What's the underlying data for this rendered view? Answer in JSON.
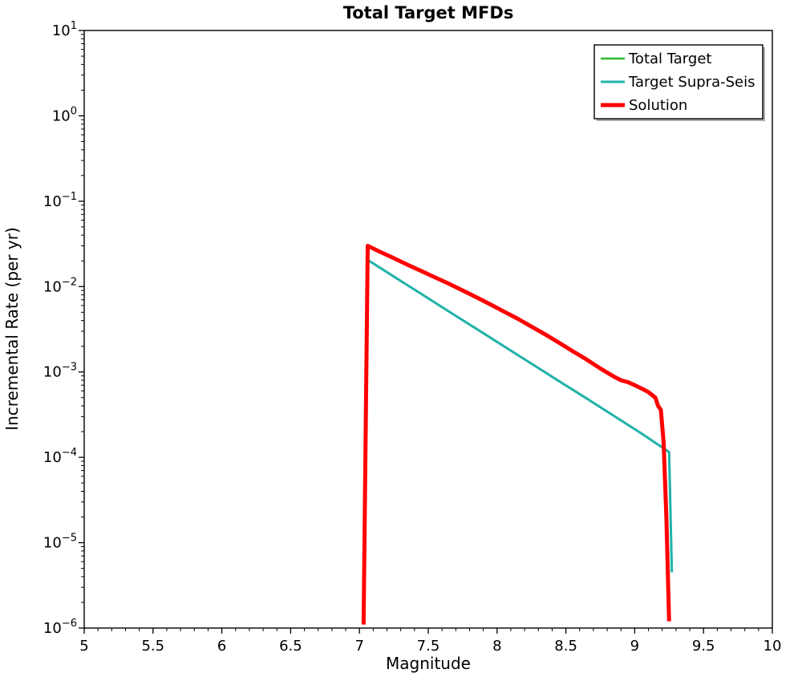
{
  "chart_data": {
    "type": "line",
    "title": "Total Target MFDs",
    "xlabel": "Magnitude",
    "ylabel": "Incremental Rate (per yr)",
    "xlim": [
      5,
      10
    ],
    "ylim_log10": [
      -6,
      1
    ],
    "xticks": [
      5,
      5.5,
      6,
      6.5,
      7,
      7.5,
      8,
      8.5,
      9,
      9.5,
      10
    ],
    "ytick_exponents": [
      1,
      0,
      -1,
      -2,
      -3,
      -4,
      -5,
      -6
    ],
    "grid": false,
    "legend_position": "upper right",
    "series": [
      {
        "name": "Total Target",
        "color": "#2eb82e",
        "width": 2.5,
        "points": [
          [
            7.05,
            0.021
          ],
          [
            7.25,
            0.0131
          ],
          [
            7.45,
            0.0082
          ],
          [
            7.65,
            0.0051
          ],
          [
            7.85,
            0.0032
          ],
          [
            8.05,
            0.002
          ],
          [
            8.25,
            0.00125
          ],
          [
            8.45,
            0.00078
          ],
          [
            8.65,
            0.00049
          ],
          [
            8.85,
            0.000305
          ],
          [
            9.05,
            0.00019
          ],
          [
            9.25,
            0.000115
          ],
          [
            9.27,
            4.5e-06
          ]
        ]
      },
      {
        "name": "Target Supra-Seis",
        "color": "#20b2aa",
        "width": 3,
        "points": [
          [
            7.05,
            0.021
          ],
          [
            7.25,
            0.0131
          ],
          [
            7.45,
            0.0082
          ],
          [
            7.65,
            0.0051
          ],
          [
            7.85,
            0.0032
          ],
          [
            8.05,
            0.002
          ],
          [
            8.25,
            0.00125
          ],
          [
            8.45,
            0.00078
          ],
          [
            8.65,
            0.00049
          ],
          [
            8.85,
            0.000305
          ],
          [
            9.05,
            0.00019
          ],
          [
            9.25,
            0.000115
          ],
          [
            9.27,
            4.5e-06
          ]
        ]
      },
      {
        "name": "Solution",
        "color": "#ff0000",
        "width": 5,
        "points": [
          [
            7.03,
            1.1e-06
          ],
          [
            7.06,
            0.03
          ],
          [
            7.15,
            0.0255
          ],
          [
            7.25,
            0.0215
          ],
          [
            7.35,
            0.018
          ],
          [
            7.45,
            0.0152
          ],
          [
            7.55,
            0.0128
          ],
          [
            7.65,
            0.0108
          ],
          [
            7.75,
            0.009
          ],
          [
            7.85,
            0.0075
          ],
          [
            7.95,
            0.0062
          ],
          [
            8.05,
            0.0051
          ],
          [
            8.15,
            0.0042
          ],
          [
            8.25,
            0.0034
          ],
          [
            8.35,
            0.00275
          ],
          [
            8.45,
            0.0022
          ],
          [
            8.55,
            0.00175
          ],
          [
            8.65,
            0.0014
          ],
          [
            8.75,
            0.0011
          ],
          [
            8.85,
            0.00088
          ],
          [
            8.9,
            0.0008
          ],
          [
            8.95,
            0.00076
          ],
          [
            9.0,
            0.0007
          ],
          [
            9.05,
            0.00064
          ],
          [
            9.1,
            0.00058
          ],
          [
            9.15,
            0.0005
          ],
          [
            9.17,
            0.0004
          ],
          [
            9.19,
            0.00036
          ],
          [
            9.21,
            0.00015
          ],
          [
            9.23,
            2e-05
          ],
          [
            9.25,
            1.2e-06
          ]
        ]
      }
    ]
  }
}
